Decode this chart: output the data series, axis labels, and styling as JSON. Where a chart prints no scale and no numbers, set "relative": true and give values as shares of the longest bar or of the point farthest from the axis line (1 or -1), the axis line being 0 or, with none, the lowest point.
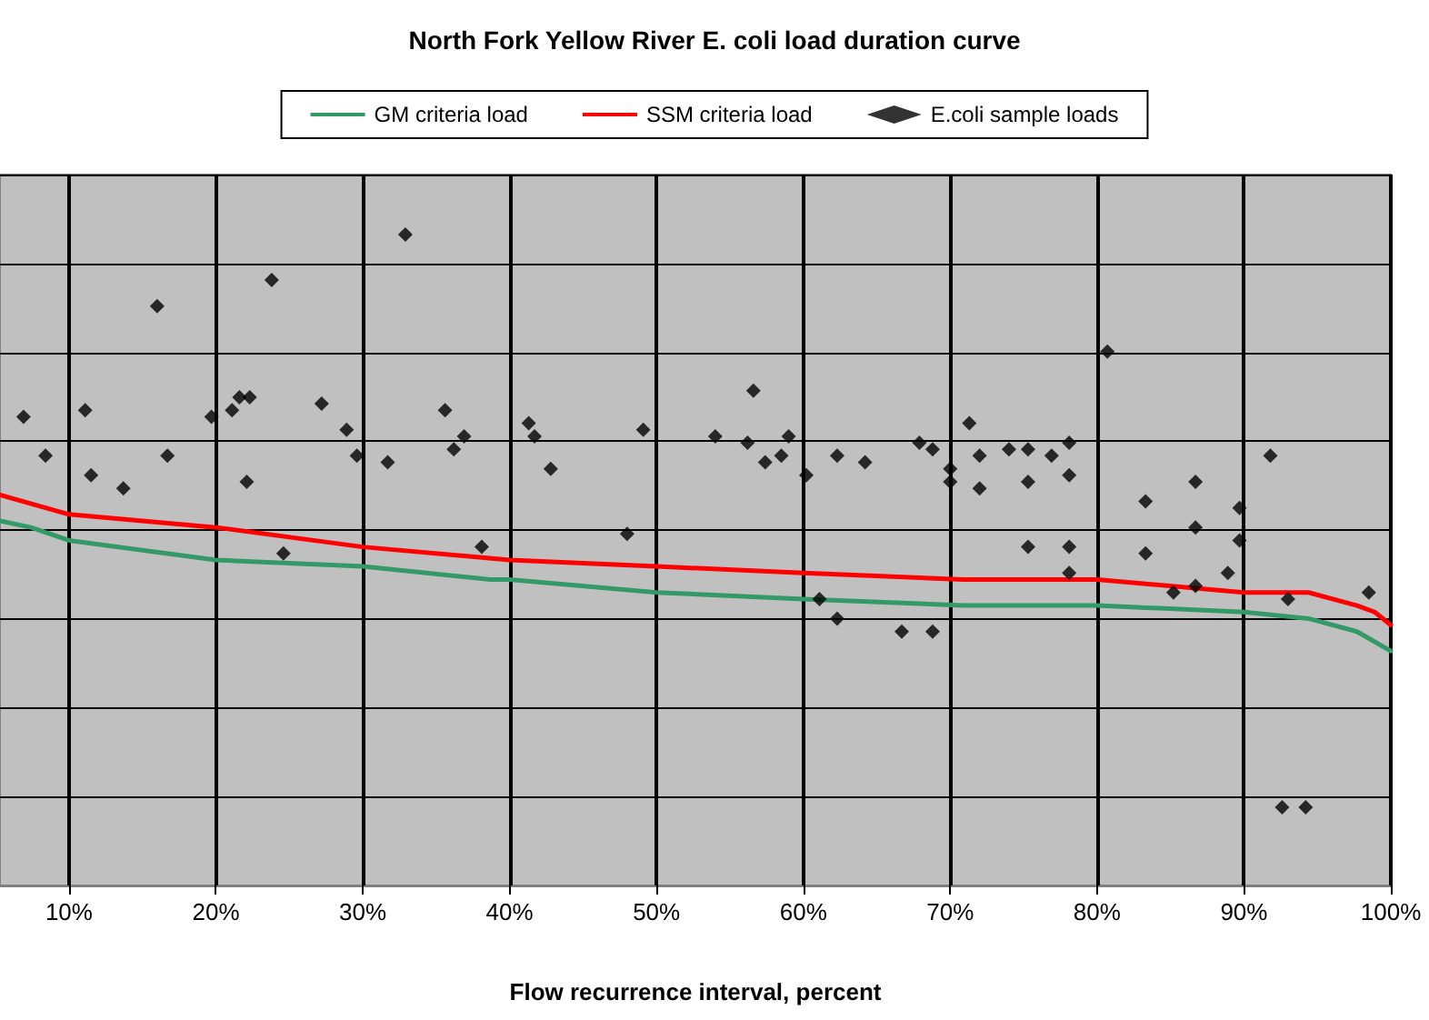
{
  "chart_data": {
    "type": "scatter",
    "title": "North Fork Yellow River E. coli load duration curve",
    "xlabel": "Flow recurrence interval, percent",
    "relative": true,
    "grid": true,
    "legend": "top",
    "xlim": [
      5.3,
      100
    ],
    "xticks": [
      {
        "value": 10,
        "label": "10%"
      },
      {
        "value": 20,
        "label": "20%"
      },
      {
        "value": 30,
        "label": "30%"
      },
      {
        "value": 40,
        "label": "40%"
      },
      {
        "value": 50,
        "label": "50%"
      },
      {
        "value": 60,
        "label": "60%"
      },
      {
        "value": 70,
        "label": "70%"
      },
      {
        "value": 80,
        "label": "80%"
      },
      {
        "value": 90,
        "label": "90%"
      },
      {
        "value": 100,
        "label": "100%"
      }
    ],
    "series": [
      {
        "name": "GM criteria load",
        "type": "line",
        "marker": "none",
        "color": "#339966",
        "x": [
          5.3,
          7.4,
          10,
          20,
          30,
          38.7,
          40,
          50,
          60,
          70.9,
          80,
          90,
          94.4,
          97.7,
          100
        ],
        "values": [
          0.56,
          0.55,
          0.53,
          0.5,
          0.49,
          0.47,
          0.47,
          0.45,
          0.44,
          0.43,
          0.43,
          0.42,
          0.41,
          0.39,
          0.36
        ]
      },
      {
        "name": "SSM criteria load",
        "type": "line",
        "marker": "none",
        "color": "#ff0000",
        "x": [
          5.3,
          10,
          20,
          30,
          40,
          50,
          60,
          70.9,
          80,
          90,
          94.4,
          97.7,
          98.9,
          100
        ],
        "values": [
          0.6,
          0.57,
          0.55,
          0.52,
          0.5,
          0.49,
          0.48,
          0.47,
          0.47,
          0.45,
          0.45,
          0.43,
          0.42,
          0.4
        ]
      },
      {
        "name": "E.coli sample loads",
        "marker": "diamond",
        "color": "#000000",
        "x": [
          6.9,
          8.4,
          11.1,
          11.5,
          13.7,
          16.0,
          16.7,
          19.7,
          21.1,
          21.6,
          22.3,
          22.1,
          23.8,
          24.6,
          27.2,
          28.9,
          29.6,
          31.7,
          32.9,
          35.6,
          36.2,
          36.9,
          38.1,
          41.3,
          41.7,
          42.8,
          48.0,
          49.1,
          54.0,
          56.2,
          56.6,
          57.4,
          58.5,
          59.0,
          60.2,
          61.1,
          62.3,
          62.3,
          64.2,
          66.7,
          67.9,
          68.8,
          68.8,
          70.0,
          70.0,
          71.3,
          72.0,
          72.0,
          74.0,
          75.3,
          75.3,
          75.3,
          76.9,
          78.1,
          78.1,
          78.1,
          78.1,
          80.7,
          83.3,
          83.3,
          85.2,
          86.7,
          86.7,
          86.7,
          88.9,
          89.7,
          89.7,
          91.8,
          92.6,
          93.0,
          94.2,
          98.5
        ],
        "values": [
          0.72,
          0.66,
          0.73,
          0.63,
          0.61,
          0.89,
          0.66,
          0.72,
          0.73,
          0.75,
          0.75,
          0.62,
          0.93,
          0.51,
          0.74,
          0.7,
          0.66,
          0.65,
          1,
          0.73,
          0.67,
          0.69,
          0.52,
          0.71,
          0.69,
          0.64,
          0.54,
          0.7,
          0.69,
          0.68,
          0.76,
          0.65,
          0.66,
          0.69,
          0.63,
          0.44,
          0.66,
          0.41,
          0.65,
          0.39,
          0.68,
          0.67,
          0.39,
          0.64,
          0.62,
          0.71,
          0.66,
          0.61,
          0.67,
          0.67,
          0.62,
          0.52,
          0.66,
          0.68,
          0.63,
          0.52,
          0.48,
          0.82,
          0.59,
          0.51,
          0.45,
          0.62,
          0.55,
          0.46,
          0.48,
          0.58,
          0.53,
          0.66,
          0.12,
          0.44,
          0.12,
          0.45
        ]
      }
    ]
  }
}
